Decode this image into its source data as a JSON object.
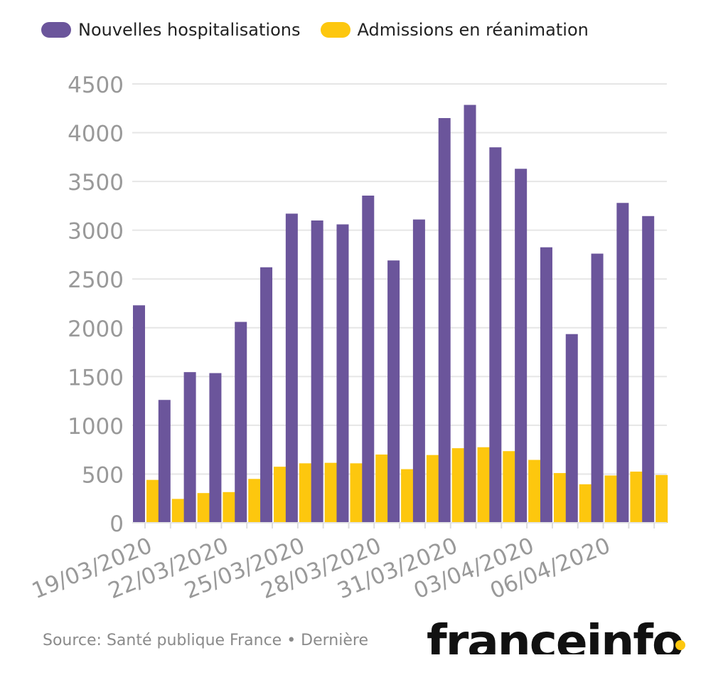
{
  "colors": {
    "hosp": "#6b559b",
    "rea": "#fdc70e",
    "grid": "#e6e6e6",
    "tick": "#999999"
  },
  "legend": {
    "hosp_label": "Nouvelles hospitalisations",
    "rea_label": "Admissions en réanimation"
  },
  "footer": {
    "source": "Source: Santé publique France • Dernière",
    "logo": "franceinfo"
  },
  "chart_data": {
    "type": "bar",
    "categories": [
      "19/03/2020",
      "20/03/2020",
      "21/03/2020",
      "22/03/2020",
      "23/03/2020",
      "24/03/2020",
      "25/03/2020",
      "26/03/2020",
      "27/03/2020",
      "28/03/2020",
      "29/03/2020",
      "30/03/2020",
      "31/03/2020",
      "01/04/2020",
      "02/04/2020",
      "03/04/2020",
      "04/04/2020",
      "05/04/2020",
      "06/04/2020",
      "07/04/2020",
      "08/04/2020"
    ],
    "x_tick_labels": [
      "19/03/2020",
      "22/03/2020",
      "25/03/2020",
      "28/03/2020",
      "31/03/2020",
      "03/04/2020",
      "06/04/2020"
    ],
    "series": [
      {
        "name": "Nouvelles hospitalisations",
        "values": [
          2230,
          1260,
          1545,
          1535,
          2060,
          2620,
          3170,
          3100,
          3060,
          3355,
          2690,
          3110,
          4150,
          4285,
          3850,
          3630,
          2825,
          1935,
          2760,
          3280,
          3145
        ]
      },
      {
        "name": "Admissions en réanimation",
        "values": [
          440,
          245,
          305,
          315,
          450,
          575,
          610,
          615,
          610,
          700,
          550,
          695,
          765,
          775,
          735,
          645,
          510,
          395,
          485,
          525,
          490
        ]
      }
    ],
    "ylim": [
      0,
      4500
    ],
    "yticks": [
      0,
      500,
      1000,
      1500,
      2000,
      2500,
      3000,
      3500,
      4000,
      4500
    ],
    "legend_position": "top-left",
    "grid": true
  }
}
